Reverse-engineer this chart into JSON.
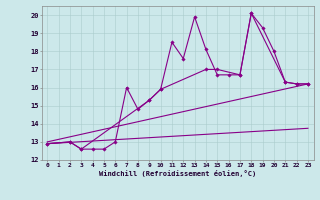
{
  "xlabel": "Windchill (Refroidissement éolien,°C)",
  "bg_color": "#cce8ea",
  "line_color": "#880088",
  "xlim": [
    -0.5,
    23.5
  ],
  "ylim": [
    12,
    20.5
  ],
  "xticks": [
    0,
    1,
    2,
    3,
    4,
    5,
    6,
    7,
    8,
    9,
    10,
    11,
    12,
    13,
    14,
    15,
    16,
    17,
    18,
    19,
    20,
    21,
    22,
    23
  ],
  "yticks": [
    12,
    13,
    14,
    15,
    16,
    17,
    18,
    19,
    20
  ],
  "lines": [
    {
      "x": [
        0,
        2,
        3,
        4,
        5,
        6,
        7,
        8,
        9,
        10,
        11,
        12,
        13,
        14,
        15,
        16,
        17,
        18,
        19,
        20,
        21,
        22,
        23
      ],
      "y": [
        12.9,
        13.0,
        12.6,
        12.6,
        12.6,
        13.0,
        16.0,
        14.8,
        15.3,
        15.9,
        18.5,
        17.6,
        19.9,
        18.1,
        16.7,
        16.7,
        16.7,
        20.1,
        19.3,
        18.0,
        16.3,
        16.2,
        16.2
      ],
      "marker": true,
      "linewidth": 0.8
    },
    {
      "x": [
        0,
        2,
        3,
        9,
        10,
        14,
        15,
        17,
        18,
        21,
        22,
        23
      ],
      "y": [
        12.9,
        13.0,
        12.6,
        15.3,
        15.9,
        17.0,
        17.0,
        16.7,
        20.1,
        16.3,
        16.2,
        16.2
      ],
      "marker": true,
      "linewidth": 0.8
    },
    {
      "x": [
        0,
        23
      ],
      "y": [
        13.0,
        16.2
      ],
      "marker": false,
      "linewidth": 0.8
    },
    {
      "x": [
        0,
        23
      ],
      "y": [
        12.9,
        13.75
      ],
      "marker": false,
      "linewidth": 0.8
    }
  ]
}
